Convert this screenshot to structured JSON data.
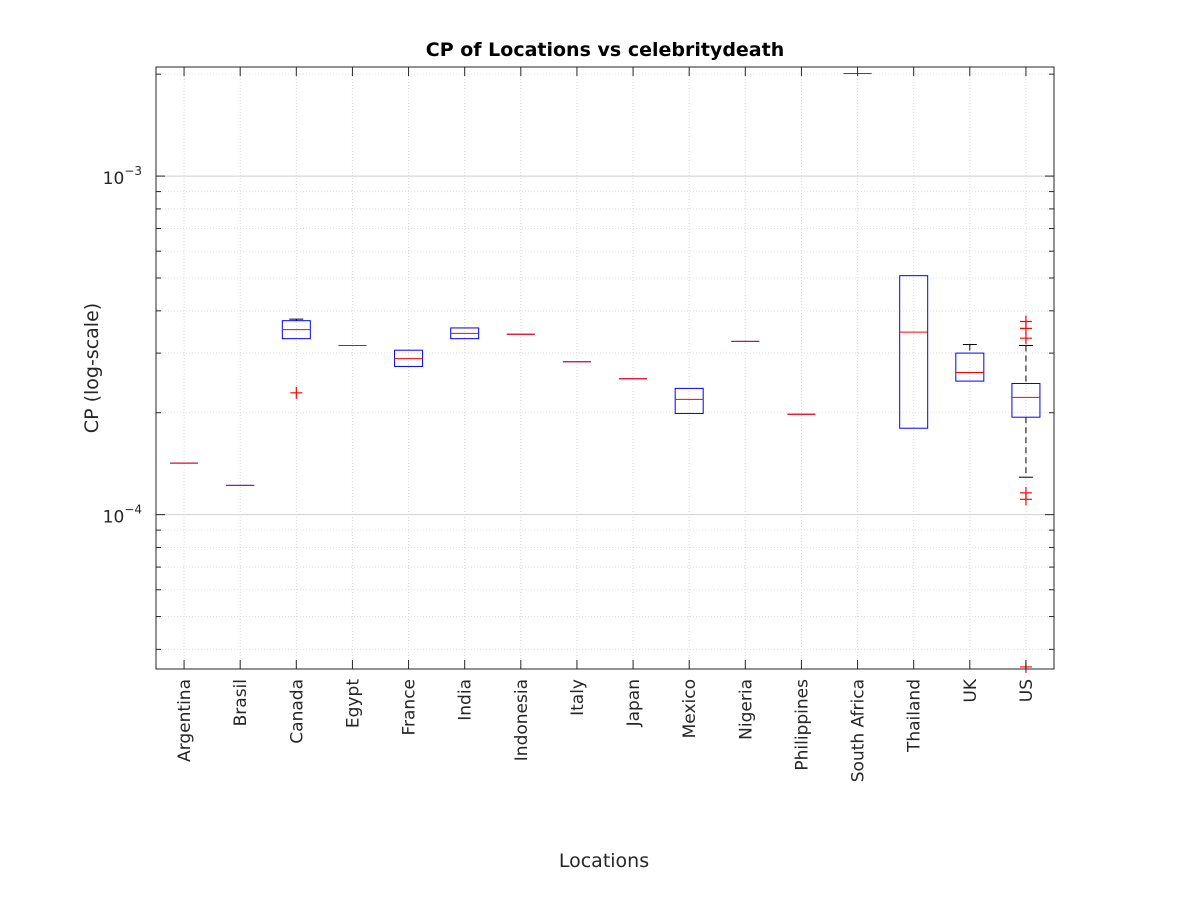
{
  "chart_data": {
    "type": "box",
    "title": "CP of Locations vs celebritydeath",
    "xlabel": "Locations",
    "ylabel": "CP (log-scale)",
    "yscale": "log",
    "ylim": [
      3.5e-05,
      0.0021
    ],
    "grid": true,
    "yticks": [
      {
        "value": 0.0001,
        "base": "10",
        "exp": "−4"
      },
      {
        "value": 0.001,
        "base": "10",
        "exp": "−3"
      }
    ],
    "categories": [
      "Argentina",
      "Brasil",
      "Canada",
      "Egypt",
      "France",
      "India",
      "Indonesia",
      "Italy",
      "Japan",
      "Mexico",
      "Nigeria",
      "Philippines",
      "South Africa",
      "Thailand",
      "UK",
      "US"
    ],
    "boxes": [
      {
        "category": "Argentina",
        "median": 0.000142,
        "q1": 0.000142,
        "q3": 0.000142,
        "whisker_low": 0.000142,
        "whisker_high": 0.000142,
        "outliers": []
      },
      {
        "category": "Brasil",
        "median": 0.000122,
        "q1": 0.000122,
        "q3": 0.000122,
        "whisker_low": 0.000122,
        "whisker_high": 0.000122,
        "outliers": []
      },
      {
        "category": "Canada",
        "median": 0.000352,
        "q1": 0.000331,
        "q3": 0.000374,
        "whisker_low": 0.000331,
        "whisker_high": 0.000378,
        "outliers": [
          0.000229
        ]
      },
      {
        "category": "Egypt",
        "median": 0.000316,
        "q1": 0.000316,
        "q3": 0.000316,
        "whisker_low": 0.000316,
        "whisker_high": 0.000316,
        "outliers": []
      },
      {
        "category": "France",
        "median": 0.000289,
        "q1": 0.000274,
        "q3": 0.000306,
        "whisker_low": 0.000274,
        "whisker_high": 0.000306,
        "outliers": []
      },
      {
        "category": "India",
        "median": 0.000343,
        "q1": 0.000331,
        "q3": 0.000356,
        "whisker_low": 0.000331,
        "whisker_high": 0.000356,
        "outliers": []
      },
      {
        "category": "Indonesia",
        "median": 0.000341,
        "q1": 0.000341,
        "q3": 0.000341,
        "whisker_low": 0.000341,
        "whisker_high": 0.000341,
        "outliers": []
      },
      {
        "category": "Italy",
        "median": 0.000283,
        "q1": 0.000283,
        "q3": 0.000283,
        "whisker_low": 0.000283,
        "whisker_high": 0.000283,
        "outliers": []
      },
      {
        "category": "Japan",
        "median": 0.000252,
        "q1": 0.000252,
        "q3": 0.000252,
        "whisker_low": 0.000252,
        "whisker_high": 0.000252,
        "outliers": []
      },
      {
        "category": "Mexico",
        "median": 0.000219,
        "q1": 0.000199,
        "q3": 0.000236,
        "whisker_low": 0.000199,
        "whisker_high": 0.000236,
        "outliers": []
      },
      {
        "category": "Nigeria",
        "median": 0.000325,
        "q1": 0.000325,
        "q3": 0.000325,
        "whisker_low": 0.000325,
        "whisker_high": 0.000325,
        "outliers": []
      },
      {
        "category": "Philippines",
        "median": 0.000198,
        "q1": 0.000198,
        "q3": 0.000198,
        "whisker_low": 0.000198,
        "whisker_high": 0.000198,
        "outliers": []
      },
      {
        "category": "South Africa",
        "median": 0.00201,
        "q1": 0.00201,
        "q3": 0.00201,
        "whisker_low": 0.00201,
        "whisker_high": 0.00201,
        "outliers": []
      },
      {
        "category": "Thailand",
        "median": 0.000346,
        "q1": 0.00018,
        "q3": 0.000508,
        "whisker_low": 0.00018,
        "whisker_high": 0.000508,
        "outliers": []
      },
      {
        "category": "UK",
        "median": 0.000263,
        "q1": 0.000248,
        "q3": 0.0003,
        "whisker_low": 0.000248,
        "whisker_high": 0.000318,
        "outliers": []
      },
      {
        "category": "US",
        "median": 0.000222,
        "q1": 0.000194,
        "q3": 0.000244,
        "whisker_low": 0.000129,
        "whisker_high": 0.000316,
        "outliers": [
          0.000372,
          0.000355,
          0.000332,
          0.000116,
          0.000111,
          3.55e-05
        ]
      }
    ],
    "colors": {
      "box": "#0000ff",
      "median": "#ff0000",
      "outlier": "#ff0000",
      "whisker": "#000000",
      "grid": "#d9d9d9",
      "axis": "#262626"
    }
  }
}
